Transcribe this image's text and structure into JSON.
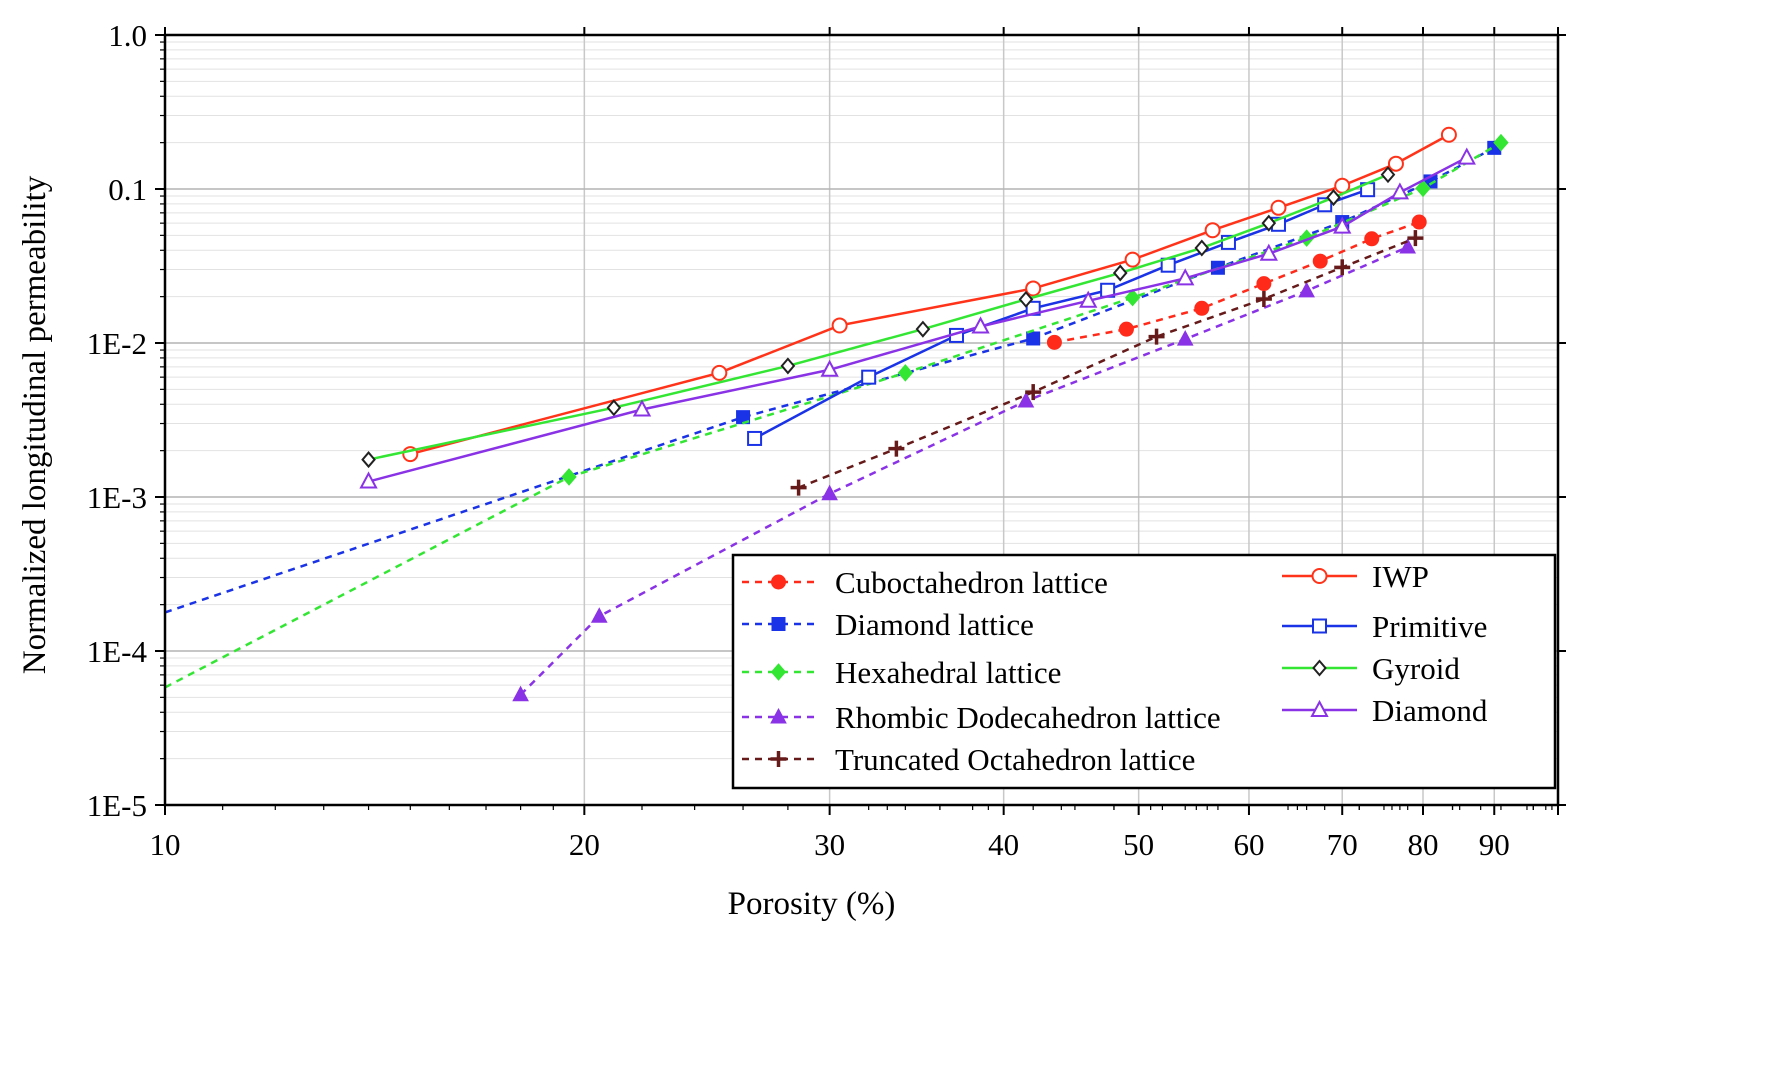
{
  "chart_data": {
    "type": "line",
    "title": "",
    "xlabel": "Porosity (%)",
    "ylabel": "Normalized longitudinal permeability",
    "xscale": "log",
    "yscale": "log",
    "xlim": [
      10,
      100
    ],
    "ylim": [
      1e-05,
      1.0
    ],
    "x_ticks": [
      {
        "value": 10,
        "label": "10"
      },
      {
        "value": 20,
        "label": "20"
      },
      {
        "value": 30,
        "label": "30"
      },
      {
        "value": 40,
        "label": "40"
      },
      {
        "value": 50,
        "label": "50"
      },
      {
        "value": 60,
        "label": "60"
      },
      {
        "value": 70,
        "label": "70"
      },
      {
        "value": 80,
        "label": "80"
      },
      {
        "value": 90,
        "label": "90"
      }
    ],
    "y_ticks": [
      {
        "value": 1.0,
        "label": "1.0"
      },
      {
        "value": 0.1,
        "label": "0.1"
      },
      {
        "value": 0.01,
        "label": "1E-2"
      },
      {
        "value": 0.001,
        "label": "1E-3"
      },
      {
        "value": 0.0001,
        "label": "1E-4"
      },
      {
        "value": 1e-05,
        "label": "1E-5"
      }
    ],
    "grid": true,
    "legend_position": "bottom-right",
    "series": [
      {
        "name": "Cuboctahedron lattice",
        "style": "dashed",
        "marker": "filled-circle",
        "color": "#ff2a1a",
        "x": [
          43.5,
          49,
          55.5,
          61.5,
          67.5,
          73.5,
          79.5
        ],
        "y": [
          0.0101,
          0.0123,
          0.0168,
          0.0243,
          0.034,
          0.0475,
          0.061
        ]
      },
      {
        "name": "Diamond lattice",
        "style": "dashed",
        "marker": "filled-square",
        "color": "#1a33e6",
        "x": [
          10,
          26,
          42,
          57,
          70,
          81,
          90
        ],
        "y": [
          0.000178,
          0.0033,
          0.0107,
          0.0308,
          0.061,
          0.112,
          0.185
        ]
      },
      {
        "name": "Hexahedral lattice",
        "style": "dashed",
        "marker": "filled-diamond",
        "color": "#33e633",
        "x": [
          10,
          19.5,
          34,
          49.5,
          66,
          80,
          91
        ],
        "y": [
          5.8e-05,
          0.00135,
          0.0064,
          0.0197,
          0.048,
          0.101,
          0.2
        ]
      },
      {
        "name": "Rhombic Dodecahedron lattice",
        "style": "dashed",
        "marker": "filled-triangle",
        "color": "#8a33e6",
        "x": [
          18,
          20.5,
          30,
          41.5,
          54,
          66,
          78
        ],
        "y": [
          5.2e-05,
          0.000168,
          0.00105,
          0.0042,
          0.0106,
          0.0218,
          0.042
        ]
      },
      {
        "name": "Truncated Octahedron lattice",
        "style": "dashed",
        "marker": "plus",
        "color": "#661a1a",
        "x": [
          28.5,
          33.5,
          42,
          51.5,
          61.5,
          70,
          79
        ],
        "y": [
          0.00115,
          0.00206,
          0.0048,
          0.011,
          0.0193,
          0.031,
          0.048
        ]
      },
      {
        "name": "IWP",
        "style": "solid",
        "marker": "open-circle",
        "color": "#ff3319",
        "x": [
          15,
          25,
          30.5,
          42,
          49.5,
          56.5,
          63,
          70,
          76.5,
          83.5
        ],
        "y": [
          0.0019,
          0.0064,
          0.013,
          0.0226,
          0.0348,
          0.054,
          0.0755,
          0.105,
          0.146,
          0.225
        ]
      },
      {
        "name": "Primitive",
        "style": "solid",
        "marker": "open-square",
        "color": "#1a33e6",
        "x": [
          26.5,
          32,
          37,
          42,
          47.5,
          52.5,
          58,
          63,
          68,
          73
        ],
        "y": [
          0.0024,
          0.006,
          0.0112,
          0.0168,
          0.022,
          0.032,
          0.045,
          0.059,
          0.079,
          0.099
        ]
      },
      {
        "name": "Gyroid",
        "style": "solid",
        "marker": "open-diamond",
        "color": "#33e633",
        "x": [
          14,
          21,
          28,
          35,
          41.5,
          48.5,
          55.5,
          62,
          69,
          75.5
        ],
        "y": [
          0.00175,
          0.0038,
          0.0071,
          0.0123,
          0.0192,
          0.0285,
          0.0414,
          0.06,
          0.088,
          0.124
        ]
      },
      {
        "name": "Diamond",
        "style": "solid",
        "marker": "open-triangle",
        "color": "#8a33e6",
        "x": [
          14,
          22,
          30,
          38.5,
          46,
          54,
          62,
          70,
          77,
          86
        ],
        "y": [
          0.00126,
          0.0037,
          0.0067,
          0.0128,
          0.0188,
          0.0263,
          0.038,
          0.057,
          0.095,
          0.16
        ]
      }
    ],
    "legend": {
      "columns": [
        [
          "Cuboctahedron lattice",
          "Diamond lattice",
          "Hexahedral lattice",
          "Rhombic Dodecahedron lattice",
          "Truncated Octahedron lattice"
        ],
        [
          "IWP",
          "Primitive",
          "Gyroid",
          "Diamond"
        ]
      ]
    }
  }
}
